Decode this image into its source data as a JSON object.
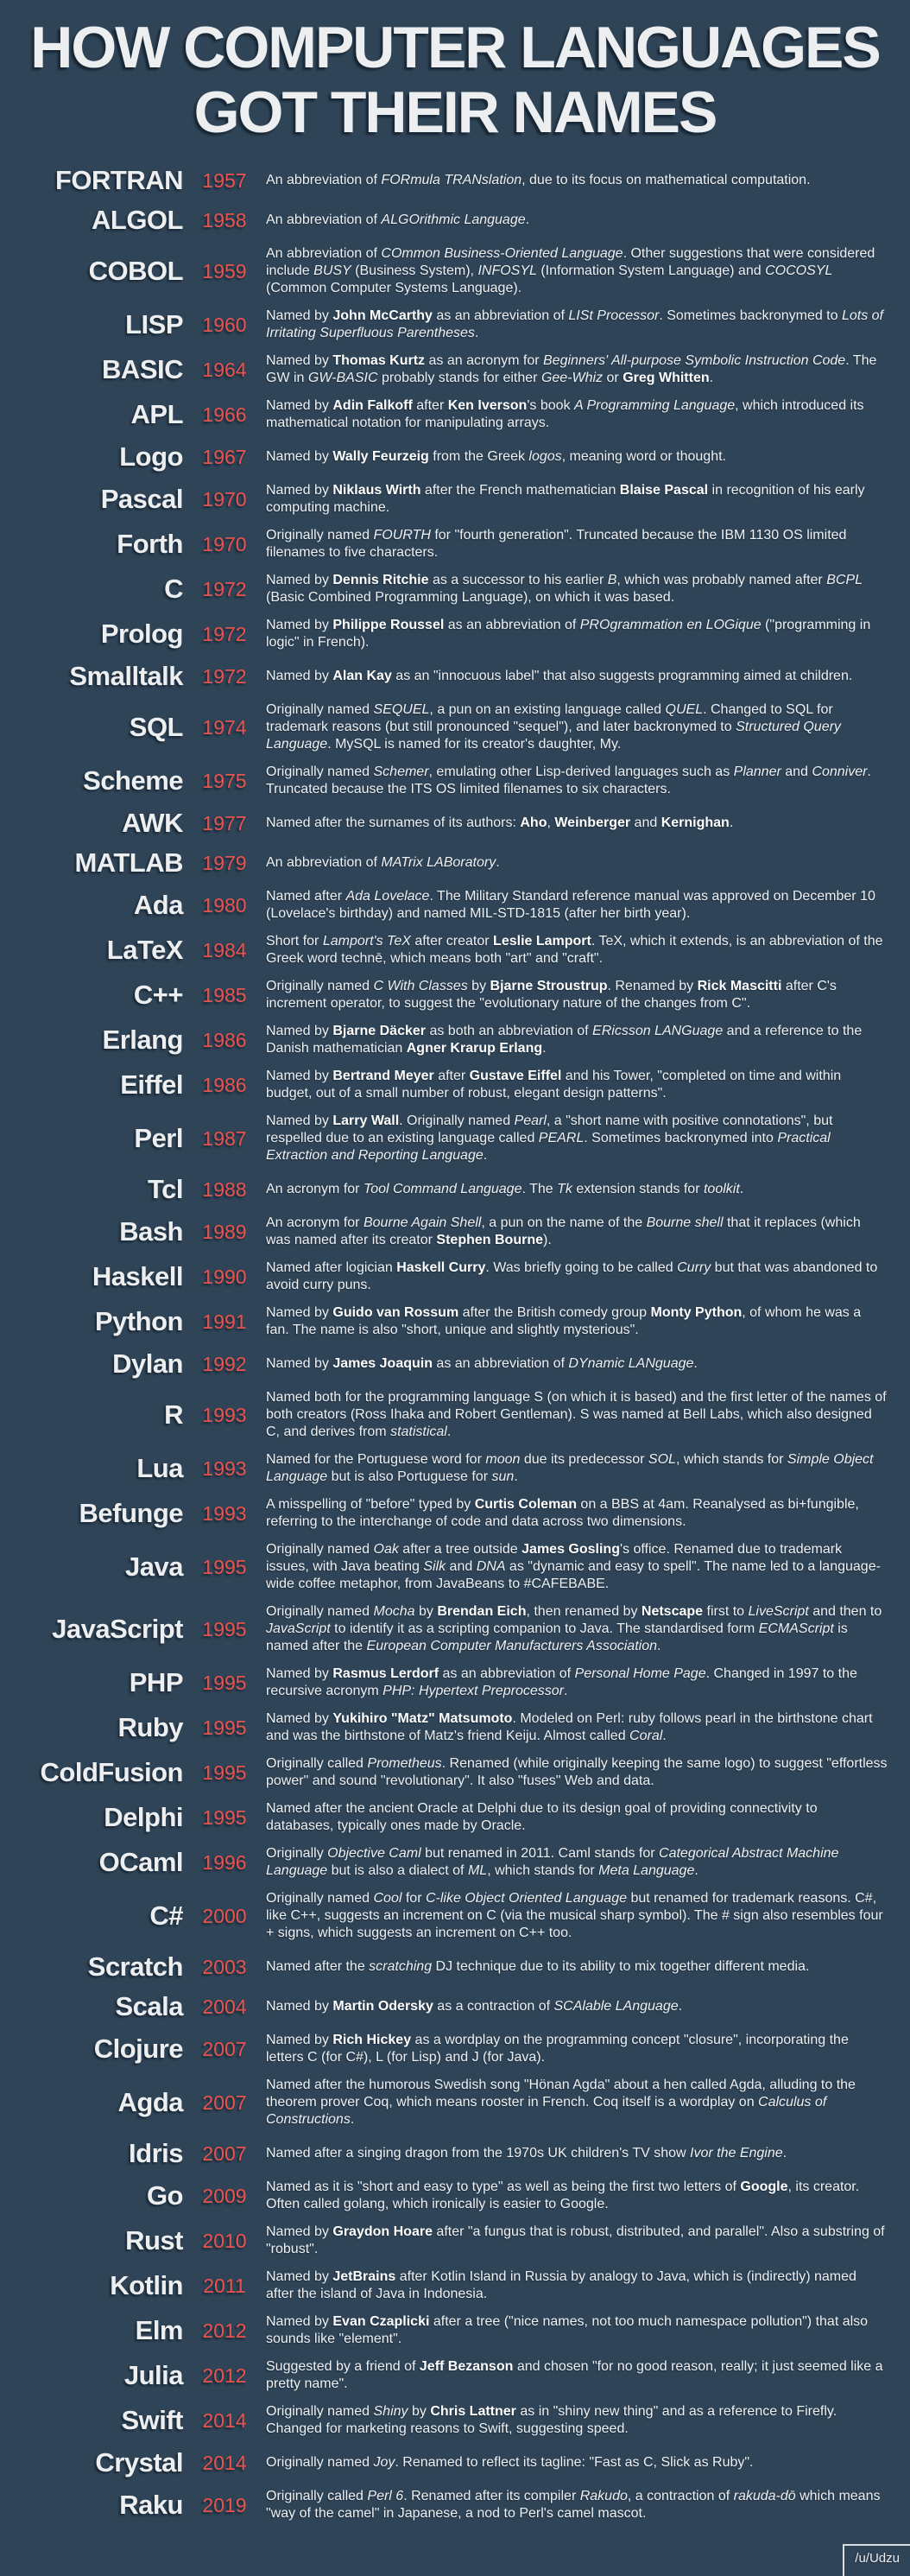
{
  "title": {
    "line1": "HOW COMPUTER LANGUAGES",
    "line2": "GOT THEIR NAMES"
  },
  "credit": "/u/Udzu",
  "colors": {
    "background": "#2f4457",
    "year_accent": "#e8534f",
    "heading_text": "#eceef0",
    "body_text": "#eef1f3"
  },
  "entries": [
    {
      "name": "FORTRAN",
      "year": "1957",
      "desc": "An abbreviation of <i>FORmula TRANslation</i>, due to its focus on mathematical computation."
    },
    {
      "name": "ALGOL",
      "year": "1958",
      "desc": "An abbreviation of <i>ALGOrithmic Language</i>."
    },
    {
      "name": "COBOL",
      "year": "1959",
      "desc": "An abbreviation of <i>COmmon Business-Oriented Language</i>. Other suggestions that were considered include <i>BUSY</i> (Business System), <i>INFOSYL</i> (Information System Language) and <i>COCOSYL</i> (Common Computer Systems Language)."
    },
    {
      "name": "LISP",
      "year": "1960",
      "desc": "Named by <b>John McCarthy</b> as an abbreviation of <i>LISt Processor</i>. Sometimes backronymed to <i>Lots of Irritating Superfluous Parentheses</i>."
    },
    {
      "name": "BASIC",
      "year": "1964",
      "desc": "Named by <b>Thomas Kurtz</b> as an acronym for <i>Beginners' All-purpose Symbolic Instruction Code</i>. The GW in <i>GW-BASIC</i> probably stands for either <i>Gee-Whiz</i> or <b>Greg Whitten</b>."
    },
    {
      "name": "APL",
      "year": "1966",
      "desc": "Named by <b>Adin Falkoff</b> after <b>Ken Iverson</b>'s book <i>A Programming Language</i>, which introduced its mathematical notation for manipulating arrays."
    },
    {
      "name": "Logo",
      "year": "1967",
      "desc": "Named by <b>Wally Feurzeig</b> from the Greek <i>logos</i>, meaning word or thought."
    },
    {
      "name": "Pascal",
      "year": "1970",
      "desc": "Named by <b>Niklaus Wirth</b> after the French mathematician <b>Blaise Pascal</b> in recognition of his early computing machine."
    },
    {
      "name": "Forth",
      "year": "1970",
      "desc": "Originally named <i>FOURTH</i> for \"fourth generation\". Truncated because the IBM 1130 OS limited filenames to five characters."
    },
    {
      "name": "C",
      "year": "1972",
      "desc": "Named by <b>Dennis Ritchie</b> as a successor to his earlier <i>B</i>, which was probably named after <i>BCPL</i> (Basic Combined Programming Language), on which it was based."
    },
    {
      "name": "Prolog",
      "year": "1972",
      "desc": "Named by <b>Philippe Roussel</b> as an abbreviation of <i>PROgrammation en LOGique</i> (\"programming in logic\" in French)."
    },
    {
      "name": "Smalltalk",
      "year": "1972",
      "desc": "Named by <b>Alan Kay</b> as an \"innocuous label\" that also suggests programming aimed at children."
    },
    {
      "name": "SQL",
      "year": "1974",
      "desc": "Originally named <i>SEQUEL</i>, a pun on an existing language called <i>QUEL</i>. Changed to SQL for trademark reasons (but still pronounced \"sequel\"), and later backronymed to <i>Structured Query Language</i>. MySQL is named for its creator's daughter, My."
    },
    {
      "name": "Scheme",
      "year": "1975",
      "desc": "Originally named <i>Schemer</i>, emulating other Lisp-derived languages such as <i>Planner</i> and <i>Conniver</i>. Truncated because the ITS OS limited filenames to six characters."
    },
    {
      "name": "AWK",
      "year": "1977",
      "desc": "Named after the surnames of its authors: <b>Aho</b>, <b>Weinberger</b> and <b>Kernighan</b>."
    },
    {
      "name": "MATLAB",
      "year": "1979",
      "desc": "An abbreviation of <i>MATrix LABoratory</i>."
    },
    {
      "name": "Ada",
      "year": "1980",
      "desc": "Named after <i>Ada Lovelace</i>. The Military Standard reference manual was approved on December 10 (Lovelace's birthday) and named MIL-STD-1815 (after her birth year)."
    },
    {
      "name": "LaTeX",
      "year": "1984",
      "desc": "Short for <i>Lamport's TeX</i> after creator <b>Leslie Lamport</b>. TeX, which it extends, is an abbreviation of the Greek word technē, which means both \"art\" and \"craft\"."
    },
    {
      "name": "C++",
      "year": "1985",
      "desc": "Originally named <i>C With Classes</i> by <b>Bjarne Stroustrup</b>. Renamed by <b>Rick Mascitti</b> after C's increment operator, to suggest the \"evolutionary nature of the changes from C\"."
    },
    {
      "name": "Erlang",
      "year": "1986",
      "desc": "Named by <b>Bjarne Däcker</b> as both an abbreviation of <i>ERicsson LANGuage</i> and a reference to the Danish mathematician <b>Agner Krarup Erlang</b>."
    },
    {
      "name": "Eiffel",
      "year": "1986",
      "desc": "Named by <b>Bertrand Meyer</b> after <b>Gustave Eiffel</b> and his Tower, \"completed on time and within budget, out of a small number of robust, elegant design patterns\"."
    },
    {
      "name": "Perl",
      "year": "1987",
      "desc": "Named by <b>Larry Wall</b>. Originally named <i>Pearl</i>, a \"short name with positive connotations\", but respelled due to an existing language called <i>PEARL</i>. Sometimes backronymed into <i>Practical Extraction and Reporting Language</i>."
    },
    {
      "name": "Tcl",
      "year": "1988",
      "desc": "An acronym for <i>Tool Command Language</i>. The <i>Tk</i> extension stands for <i>toolkit</i>."
    },
    {
      "name": "Bash",
      "year": "1989",
      "desc": "An acronym for <i>Bourne Again Shell</i>, a pun on the name of the <i>Bourne shell</i> that it replaces (which was named after its creator <b>Stephen Bourne</b>)."
    },
    {
      "name": "Haskell",
      "year": "1990",
      "desc": "Named after logician <b>Haskell Curry</b>. Was briefly going to be called <i>Curry</i> but that was abandoned to avoid curry puns."
    },
    {
      "name": "Python",
      "year": "1991",
      "desc": "Named by <b>Guido van Rossum</b> after the British comedy group <b>Monty Python</b>, of whom he was a fan. The name is also \"short, unique and slightly mysterious\"."
    },
    {
      "name": "Dylan",
      "year": "1992",
      "desc": "Named by <b>James Joaquin</b> as an abbreviation of <i>DYnamic LANguage</i>."
    },
    {
      "name": "R",
      "year": "1993",
      "desc": "Named both for the programming language S (on which it is based) and the first letter of the names of both creators (Ross Ihaka and Robert Gentleman). S was named at Bell Labs, which also designed C, and derives from <i>statistical</i>."
    },
    {
      "name": "Lua",
      "year": "1993",
      "desc": "Named for the Portuguese word for <i>moon</i> due its predecessor <i>SOL</i>, which stands for <i>Simple Object Language</i> but is also Portuguese for <i>sun</i>."
    },
    {
      "name": "Befunge",
      "year": "1993",
      "desc": "A misspelling of \"before\" typed by <b>Curtis Coleman</b> on a BBS at 4am. Reanalysed as bi+fungible, referring to the interchange of code and data across two dimensions."
    },
    {
      "name": "Java",
      "year": "1995",
      "desc": "Originally named <i>Oak</i> after a tree outside <b>James Gosling</b>'s office. Renamed due to trademark issues, with Java beating <i>Silk</i> and <i>DNA</i> as \"dynamic and easy to spell\". The name led to a language-wide coffee metaphor, from JavaBeans to #CAFEBABE."
    },
    {
      "name": "JavaScript",
      "year": "1995",
      "desc": "Originally named <i>Mocha</i> by <b>Brendan Eich</b>, then renamed by <b>Netscape</b> first to <i>LiveScript</i> and then to <i>JavaScript</i> to identify it as a scripting companion to Java. The standardised form <i>ECMAScript</i> is named after the <i>European Computer Manufacturers Association</i>."
    },
    {
      "name": "PHP",
      "year": "1995",
      "desc": "Named by <b>Rasmus Lerdorf</b> as an abbreviation of <i>Personal Home Page</i>. Changed in 1997 to the recursive acronym <i>PHP: Hypertext Preprocessor</i>."
    },
    {
      "name": "Ruby",
      "year": "1995",
      "desc": "Named by <b>Yukihiro \"Matz\" Matsumoto</b>. Modeled on Perl: ruby follows pearl in the birthstone chart and was the birthstone of Matz's friend Keiju. Almost called <i>Coral</i>."
    },
    {
      "name": "ColdFusion",
      "year": "1995",
      "desc": "Originally called <i>Prometheus</i>. Renamed (while originally keeping the same logo) to suggest \"effortless power\" and sound \"revolutionary\". It also \"fuses\" Web and data."
    },
    {
      "name": "Delphi",
      "year": "1995",
      "desc": "Named after the ancient Oracle at Delphi due to its design goal of providing connectivity to databases, typically ones made by Oracle."
    },
    {
      "name": "OCaml",
      "year": "1996",
      "desc": "Originally <i>Objective Caml</i> but renamed in 2011. Caml stands for <i>Categorical Abstract Machine Language</i> but is also a dialect of <i>ML</i>, which stands for <i>Meta Language</i>."
    },
    {
      "name": "C#",
      "year": "2000",
      "desc": "Originally named <i>Cool</i> for <i>C-like Object Oriented Language</i> but renamed for trademark reasons. C#, like C++, suggests an increment on C (via the musical sharp symbol). The # sign also resembles four + signs, which suggests an increment on C++ too."
    },
    {
      "name": "Scratch",
      "year": "2003",
      "desc": "Named after the <i>scratching</i> DJ technique due to its ability to mix together different media."
    },
    {
      "name": "Scala",
      "year": "2004",
      "desc": "Named by <b>Martin Odersky</b> as a contraction of <i>SCAlable LAnguage</i>."
    },
    {
      "name": "Clojure",
      "year": "2007",
      "desc": "Named by <b>Rich Hickey</b> as a wordplay on the programming concept \"closure\", incorporating the letters C (for C#), L (for Lisp) and J (for Java)."
    },
    {
      "name": "Agda",
      "year": "2007",
      "desc": "Named after the humorous Swedish song \"Hönan Agda\" about a hen called Agda, alluding to the theorem prover Coq, which means rooster in French. Coq itself is a wordplay on <i>Calculus of Constructions</i>."
    },
    {
      "name": "Idris",
      "year": "2007",
      "desc": "Named after a singing dragon from the 1970s UK children's TV show <i>Ivor the Engine</i>."
    },
    {
      "name": "Go",
      "year": "2009",
      "desc": "Named as it is \"short and easy to type\" as well as being the first two letters of <b>Google</b>, its creator. Often called golang, which ironically is easier to Google."
    },
    {
      "name": "Rust",
      "year": "2010",
      "desc": "Named by <b>Graydon Hoare</b> after \"a fungus that is robust, distributed, and parallel\". Also a substring of \"robust\"."
    },
    {
      "name": "Kotlin",
      "year": "2011",
      "desc": "Named by <b>JetBrains</b> after Kotlin Island in Russia by analogy to Java, which is (indirectly) named after the island of Java in Indonesia."
    },
    {
      "name": "Elm",
      "year": "2012",
      "desc": "Named by <b>Evan Czaplicki</b> after a tree (\"nice names, not too much namespace pollution\") that also sounds like \"element\"."
    },
    {
      "name": "Julia",
      "year": "2012",
      "desc": "Suggested by a friend of <b>Jeff Bezanson</b> and chosen \"for no good reason, really; it just seemed like a pretty name\"."
    },
    {
      "name": "Swift",
      "year": "2014",
      "desc": "Originally named <i>Shiny</i> by <b>Chris Lattner</b> as in \"shiny new thing\" and as a reference to Firefly. Changed for marketing reasons to Swift, suggesting speed."
    },
    {
      "name": "Crystal",
      "year": "2014",
      "desc": "Originally named <i>Joy</i>. Renamed to reflect its tagline: \"Fast as C, Slick as Ruby\"."
    },
    {
      "name": "Raku",
      "year": "2019",
      "desc": "Originally called <i>Perl 6</i>. Renamed after its compiler <i>Rakudo</i>, a contraction of <i>rakuda-dō</i> which means \"way of the camel\" in Japanese, a nod to Perl's camel mascot."
    }
  ]
}
